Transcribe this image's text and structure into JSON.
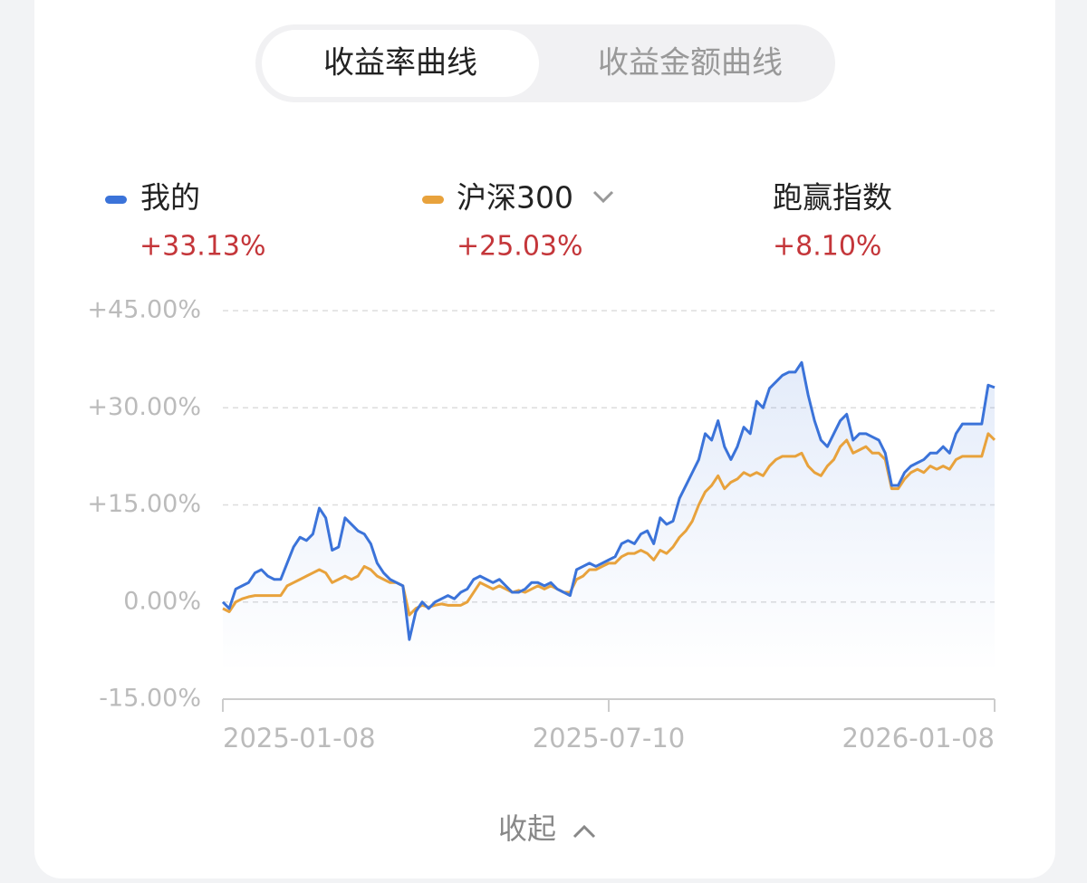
{
  "tabs": [
    "收益率曲线",
    "收益金额曲线"
  ],
  "collapse": "收起",
  "chart_data": {
    "type": "line",
    "categories": [
      "2025-01-08",
      null,
      null,
      null,
      null,
      null,
      null,
      null,
      null,
      null,
      null,
      null,
      null,
      null,
      null,
      null,
      null,
      null,
      null,
      null,
      null,
      null,
      null,
      null,
      null,
      null,
      null,
      null,
      null,
      null,
      null,
      null,
      null,
      null,
      null,
      null,
      null,
      null,
      null,
      null,
      null,
      null,
      null,
      null,
      null,
      null,
      null,
      null,
      null,
      null,
      null,
      null,
      null,
      null,
      null,
      null,
      null,
      null,
      null,
      null,
      "2025-07-10",
      null,
      null,
      null,
      null,
      null,
      null,
      null,
      null,
      null,
      null,
      null,
      null,
      null,
      null,
      null,
      null,
      null,
      null,
      null,
      null,
      null,
      null,
      null,
      null,
      null,
      null,
      null,
      null,
      null,
      null,
      null,
      null,
      null,
      null,
      null,
      null,
      null,
      null,
      null,
      null,
      null,
      null,
      null,
      null,
      null,
      null,
      null,
      null,
      null,
      null,
      null,
      null,
      null,
      null,
      null,
      null,
      null,
      null,
      null,
      "2026-01-08"
    ],
    "series": [
      {
        "name": "我的",
        "color": "#3b73d9",
        "total_label": "+33.13%",
        "values": [
          0,
          -1,
          2,
          2.5,
          3,
          4.5,
          5,
          4,
          3.5,
          3.5,
          6,
          8.5,
          10,
          9.5,
          10.5,
          14.5,
          13,
          8,
          8.5,
          13,
          12,
          11,
          10.5,
          9,
          6,
          4.5,
          3.5,
          3,
          2.5,
          -5.8,
          -1.5,
          0,
          -1,
          0,
          0.5,
          1,
          0.5,
          1.5,
          2,
          3.5,
          4,
          3.5,
          3,
          3.5,
          2.5,
          1.5,
          1.5,
          2,
          3,
          3,
          2.5,
          3,
          2,
          1.5,
          1,
          5,
          5.5,
          6,
          5.5,
          6,
          6.5,
          7,
          9,
          9.5,
          9,
          10.5,
          11,
          9,
          13,
          12,
          12.5,
          16,
          18,
          20,
          22,
          26,
          25,
          28,
          24,
          22,
          24,
          27,
          26,
          31,
          30,
          33,
          34,
          35,
          35.5,
          35.5,
          37,
          32,
          28,
          25,
          24,
          26,
          28,
          29,
          25,
          26,
          26,
          25.5,
          25,
          23,
          18,
          18,
          20,
          21,
          21.5,
          22,
          23,
          23,
          24,
          23,
          26,
          27.5,
          27.5,
          27.5,
          27.5,
          33.5,
          33.13
        ]
      },
      {
        "name": "沪深300",
        "color": "#e8a23c",
        "total_label": "+25.03%",
        "values": [
          -1,
          -1.5,
          0,
          0.5,
          0.8,
          1,
          1,
          1,
          1,
          1,
          2.5,
          3,
          3.5,
          4,
          4.5,
          5,
          4.5,
          3,
          3.5,
          4,
          3.5,
          4,
          5.5,
          5,
          4,
          3.5,
          3,
          3,
          2.5,
          -2,
          -1,
          -0.5,
          -0.8,
          -0.5,
          -0.3,
          -0.5,
          -0.5,
          -0.5,
          0,
          1.5,
          3,
          2.5,
          2,
          2.5,
          2,
          1.5,
          1.8,
          1.5,
          2,
          2.5,
          2,
          2.5,
          2,
          1.5,
          1.5,
          3.5,
          4,
          5,
          5,
          5.5,
          6,
          6,
          7,
          7.5,
          7.5,
          8,
          7.5,
          6.5,
          8,
          7.5,
          8.5,
          10,
          11,
          12.5,
          15,
          17,
          18,
          19.5,
          17.5,
          18.5,
          19,
          20,
          19.5,
          20,
          19.5,
          21,
          22,
          22.5,
          22.5,
          22.5,
          23,
          21,
          20,
          19.5,
          21,
          22,
          24,
          25,
          23,
          23.5,
          24,
          23,
          23,
          22,
          17.5,
          17.5,
          19,
          20,
          20.5,
          20,
          21,
          20.5,
          21,
          20.5,
          22,
          22.5,
          22.5,
          22.5,
          22.5,
          26,
          25.03
        ]
      }
    ],
    "excess": {
      "name": "跑赢指数",
      "label": "+8.10%"
    },
    "ylim": [
      -15,
      45
    ],
    "yticks": [
      {
        "value": -15,
        "label": "-15.00%"
      },
      {
        "value": 0,
        "label": "0.00%"
      },
      {
        "value": 15,
        "label": "+15.00%"
      },
      {
        "value": 30,
        "label": "+30.00%"
      },
      {
        "value": 45,
        "label": "+45.00%"
      }
    ],
    "grid": true
  }
}
